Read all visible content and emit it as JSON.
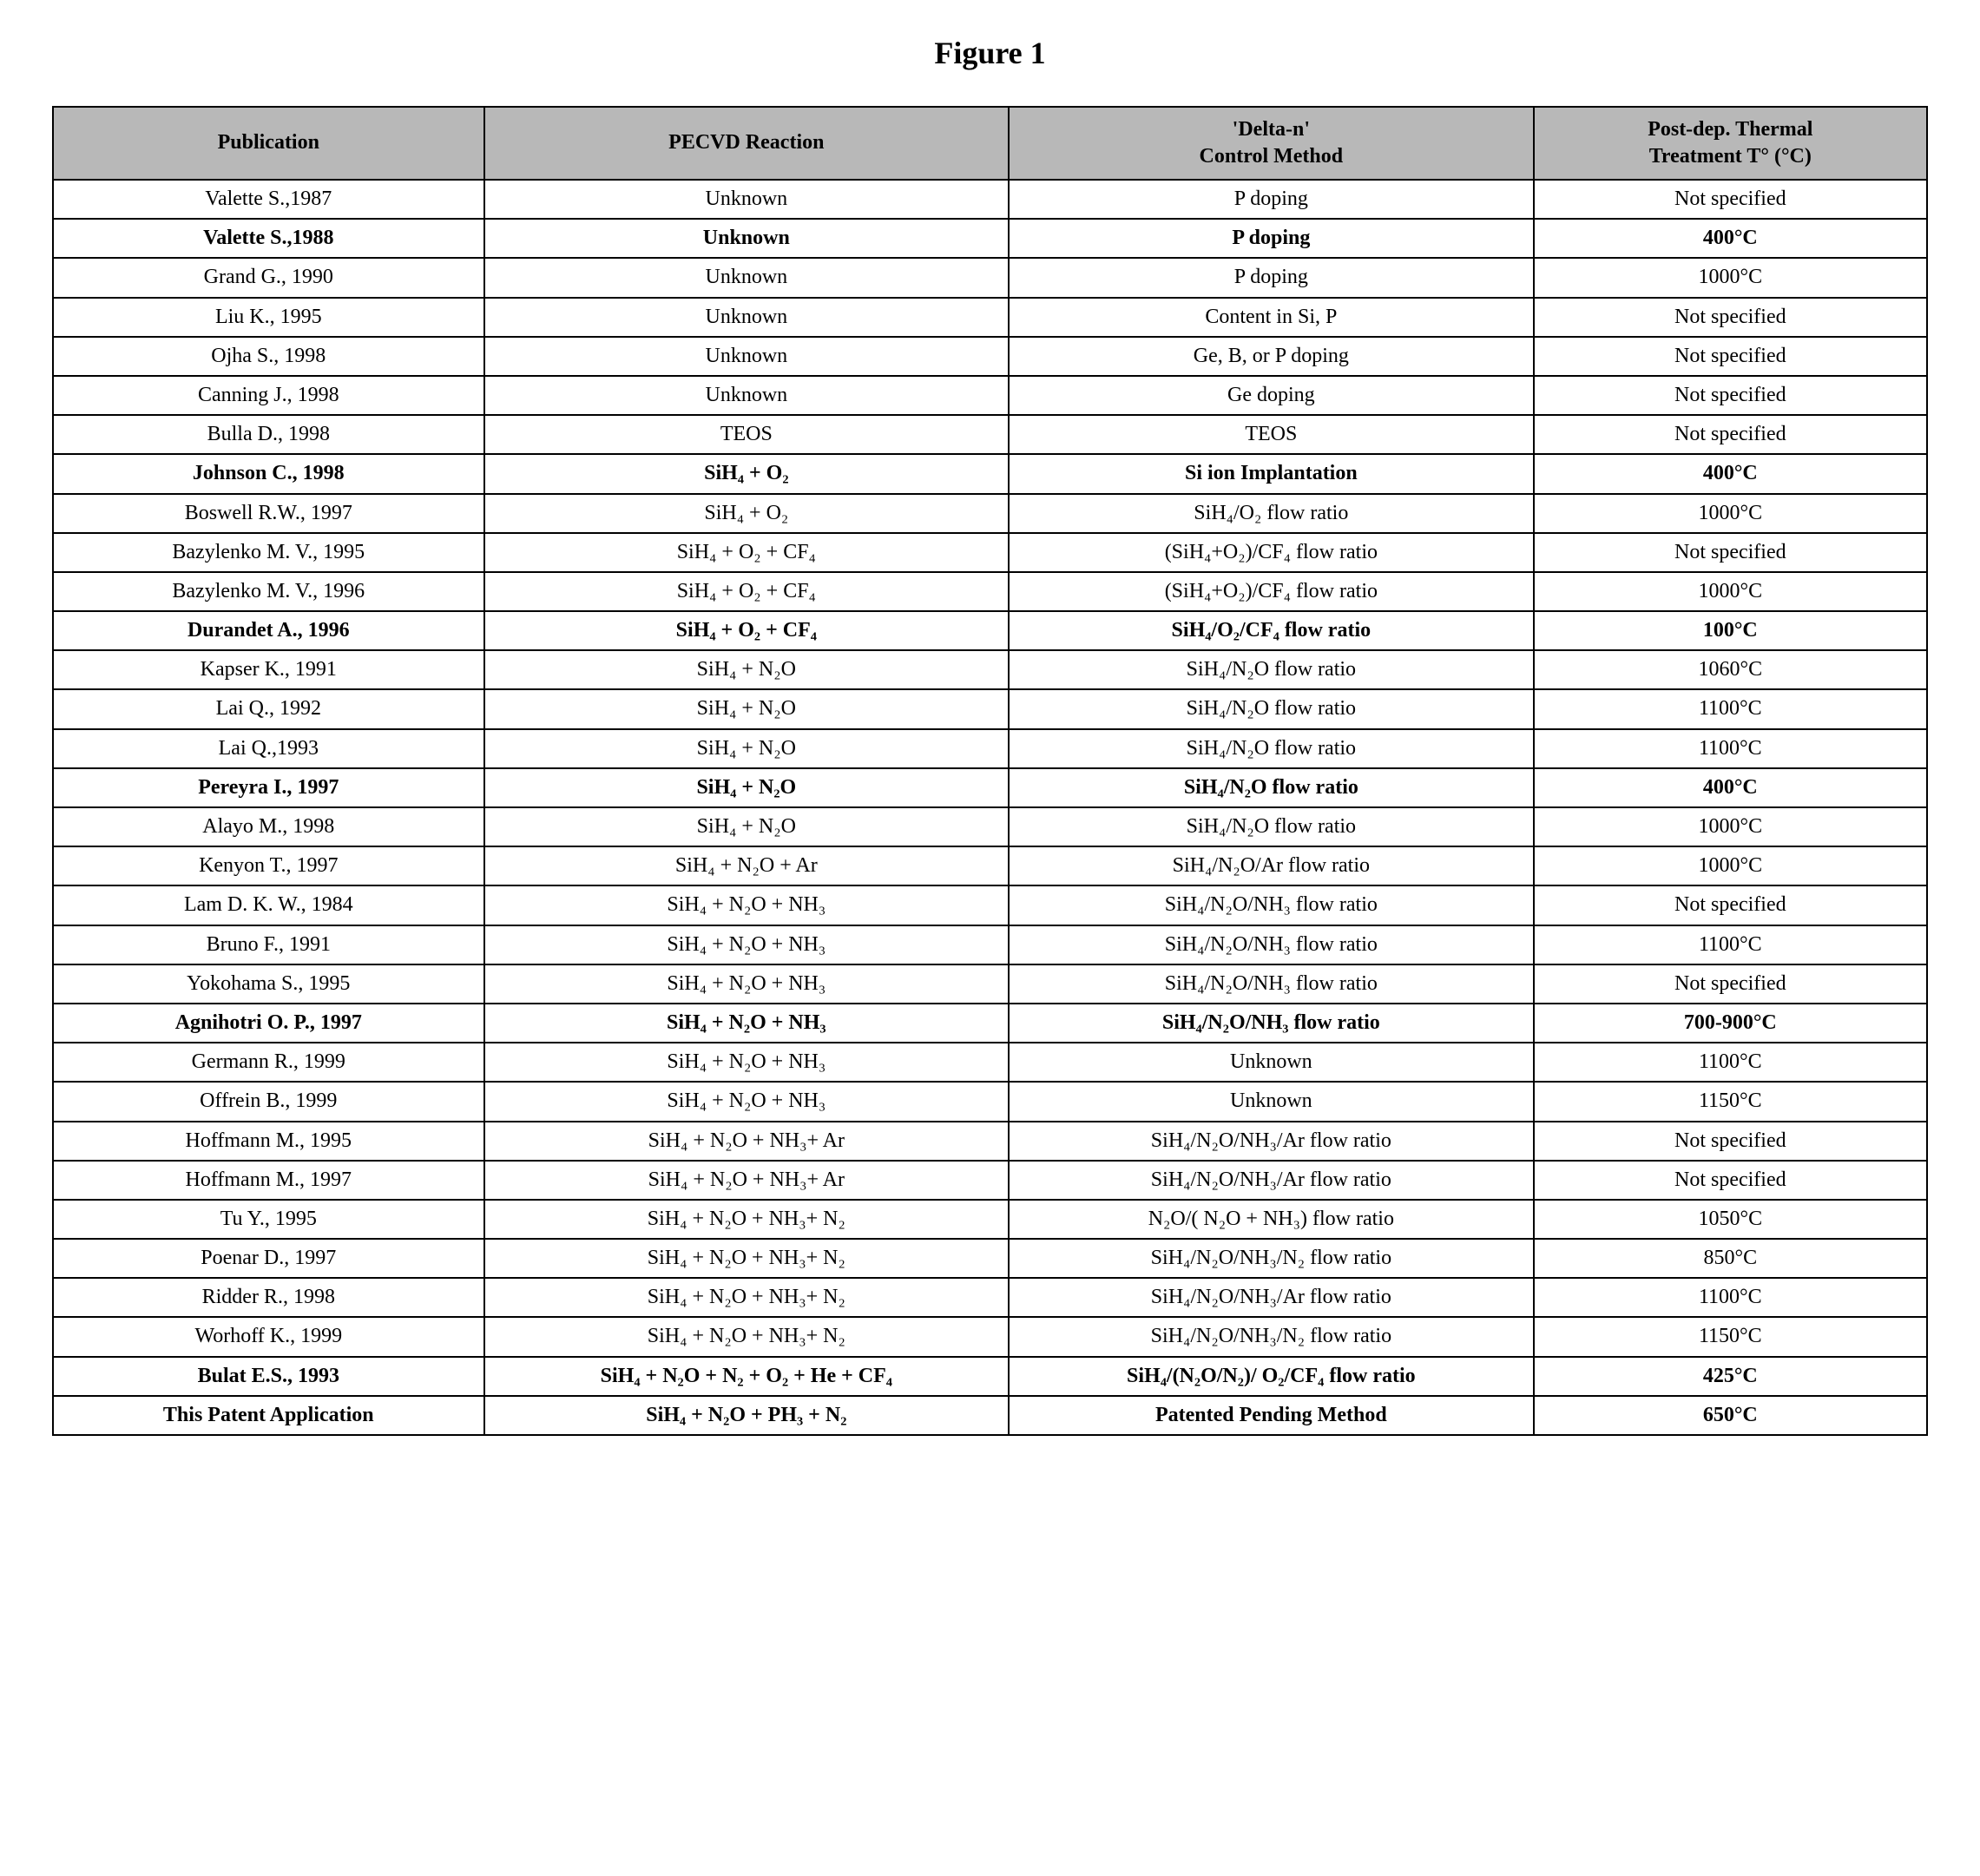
{
  "title": "Figure 1",
  "columns": [
    "Publication",
    "PECVD Reaction",
    "'Delta-n'\nControl Method",
    "Post-dep. Thermal\nTreatment T° (°C)"
  ],
  "rows": [
    {
      "bold": false,
      "cells": [
        "Valette S.,1987",
        "Unknown",
        "P doping",
        "Not specified"
      ]
    },
    {
      "bold": true,
      "cells": [
        "Valette S.,1988",
        "Unknown",
        "P doping",
        "400°C"
      ]
    },
    {
      "bold": false,
      "cells": [
        "Grand G., 1990",
        "Unknown",
        "P doping",
        "1000°C"
      ]
    },
    {
      "bold": false,
      "cells": [
        "Liu K., 1995",
        "Unknown",
        "Content in Si, P",
        "Not specified"
      ]
    },
    {
      "bold": false,
      "cells": [
        "Ojha S., 1998",
        "Unknown",
        "Ge, B, or P doping",
        "Not specified"
      ]
    },
    {
      "bold": false,
      "cells": [
        "Canning J., 1998",
        "Unknown",
        "Ge doping",
        "Not specified"
      ]
    },
    {
      "bold": false,
      "cells": [
        "Bulla D., 1998",
        "TEOS",
        "TEOS",
        "Not specified"
      ]
    },
    {
      "bold": true,
      "cells": [
        "Johnson C., 1998",
        "SiH₄ + O₂",
        "Si ion Implantation",
        "400°C"
      ]
    },
    {
      "bold": false,
      "cells": [
        "Boswell R.W., 1997",
        "SiH₄ + O₂",
        "SiH₄/O₂ flow ratio",
        "1000°C"
      ]
    },
    {
      "bold": false,
      "cells": [
        "Bazylenko M. V., 1995",
        "SiH₄ + O₂ + CF₄",
        "(SiH₄+O₂)/CF₄ flow ratio",
        "Not specified"
      ]
    },
    {
      "bold": false,
      "cells": [
        "Bazylenko M. V., 1996",
        "SiH₄ + O₂ + CF₄",
        "(SiH₄+O₂)/CF₄ flow ratio",
        "1000°C"
      ]
    },
    {
      "bold": true,
      "cells": [
        "Durandet A., 1996",
        "SiH₄ + O₂ + CF₄",
        "SiH₄/O₂/CF₄ flow ratio",
        "100°C"
      ]
    },
    {
      "bold": false,
      "cells": [
        "Kapser K., 1991",
        "SiH₄ + N₂O",
        "SiH₄/N₂O flow ratio",
        "1060°C"
      ]
    },
    {
      "bold": false,
      "cells": [
        "Lai Q., 1992",
        "SiH₄ + N₂O",
        "SiH₄/N₂O flow ratio",
        "1100°C"
      ]
    },
    {
      "bold": false,
      "cells": [
        "Lai Q.,1993",
        "SiH₄ + N₂O",
        "SiH₄/N₂O flow ratio",
        "1100°C"
      ]
    },
    {
      "bold": true,
      "cells": [
        "Pereyra I., 1997",
        "SiH₄ + N₂O",
        "SiH₄/N₂O flow ratio",
        "400°C"
      ]
    },
    {
      "bold": false,
      "cells": [
        "Alayo M., 1998",
        "SiH₄ + N₂O",
        "SiH₄/N₂O flow ratio",
        "1000°C"
      ]
    },
    {
      "bold": false,
      "cells": [
        "Kenyon T., 1997",
        "SiH₄ + N₂O + Ar",
        "SiH₄/N₂O/Ar flow ratio",
        "1000°C"
      ]
    },
    {
      "bold": false,
      "cells": [
        "Lam D. K. W., 1984",
        "SiH₄ + N₂O + NH₃",
        "SiH₄/N₂O/NH₃ flow ratio",
        "Not specified"
      ]
    },
    {
      "bold": false,
      "cells": [
        "Bruno F., 1991",
        "SiH₄ + N₂O + NH₃",
        "SiH₄/N₂O/NH₃ flow ratio",
        "1100°C"
      ]
    },
    {
      "bold": false,
      "cells": [
        "Yokohama S., 1995",
        "SiH₄ + N₂O + NH₃",
        "SiH₄/N₂O/NH₃ flow ratio",
        "Not specified"
      ]
    },
    {
      "bold": true,
      "cells": [
        "Agnihotri O. P., 1997",
        "SiH₄ + N₂O + NH₃",
        "SiH₄/N₂O/NH₃ flow ratio",
        "700-900°C"
      ]
    },
    {
      "bold": false,
      "cells": [
        "Germann R., 1999",
        "SiH₄ + N₂O + NH₃",
        "Unknown",
        "1100°C"
      ]
    },
    {
      "bold": false,
      "cells": [
        "Offrein B., 1999",
        "SiH₄ + N₂O + NH₃",
        "Unknown",
        "1150°C"
      ]
    },
    {
      "bold": false,
      "cells": [
        "Hoffmann M., 1995",
        "SiH₄ + N₂O + NH₃+ Ar",
        "SiH₄/N₂O/NH₃/Ar flow ratio",
        "Not specified"
      ]
    },
    {
      "bold": false,
      "cells": [
        "Hoffmann M., 1997",
        "SiH₄ + N₂O + NH₃+ Ar",
        "SiH₄/N₂O/NH₃/Ar flow ratio",
        "Not specified"
      ]
    },
    {
      "bold": false,
      "cells": [
        "Tu Y., 1995",
        "SiH₄ + N₂O + NH₃+ N₂",
        "N₂O/( N₂O + NH₃) flow ratio",
        "1050°C"
      ]
    },
    {
      "bold": false,
      "cells": [
        "Poenar D., 1997",
        "SiH₄ + N₂O + NH₃+ N₂",
        "SiH₄/N₂O/NH₃/N₂ flow ratio",
        "850°C"
      ]
    },
    {
      "bold": false,
      "cells": [
        "Ridder R., 1998",
        "SiH₄ + N₂O + NH₃+ N₂",
        "SiH₄/N₂O/NH₃/Ar flow ratio",
        "1100°C"
      ]
    },
    {
      "bold": false,
      "cells": [
        "Worhoff K., 1999",
        "SiH₄ + N₂O + NH₃+ N₂",
        "SiH₄/N₂O/NH₃/N₂ flow ratio",
        "1150°C"
      ]
    },
    {
      "bold": true,
      "cells": [
        "Bulat E.S., 1993",
        "SiH₄ + N₂O + N₂ + O₂ + He + CF₄",
        "SiH₄/(N₂O/N₂)/ O₂/CF₄ flow ratio",
        "425°C"
      ]
    },
    {
      "bold": true,
      "cells": [
        "This Patent Application",
        "SiH₄ + N₂O + PH₃ + N₂",
        "Patented Pending Method",
        "650°C"
      ]
    }
  ],
  "header_bg": "#b8b8b8",
  "border_color": "#000000",
  "font_family": "Times New Roman"
}
